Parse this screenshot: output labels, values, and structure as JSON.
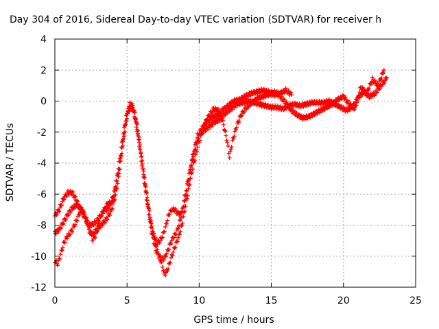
{
  "chart_data": {
    "type": "scatter",
    "title": "Day 304 of 2016, Sidereal Day-to-day VTEC variation (SDTVAR) for receiver h",
    "xlabel": "GPS time / hours",
    "ylabel": "SDTVAR / TECUs",
    "xlim": [
      0,
      25
    ],
    "ylim": [
      -12,
      4
    ],
    "xticks": [
      "0",
      "5",
      "10",
      "15",
      "20",
      "25"
    ],
    "yticks": [
      "-12",
      "-10",
      "-8",
      "-6",
      "-4",
      "-2",
      "0",
      "2",
      "4"
    ],
    "grid": true,
    "marker": "plus",
    "color": "#ff0000",
    "series": [
      {
        "values": [
          [
            0.0,
            -7.4
          ],
          [
            0.3,
            -7.0
          ],
          [
            0.6,
            -6.3
          ],
          [
            0.9,
            -5.9
          ],
          [
            1.2,
            -5.9
          ],
          [
            1.5,
            -6.4
          ],
          [
            1.8,
            -7.0
          ],
          [
            2.1,
            -7.6
          ],
          [
            2.4,
            -8.0
          ],
          [
            2.7,
            -7.9
          ],
          [
            3.0,
            -7.6
          ],
          [
            3.3,
            -7.2
          ],
          [
            3.6,
            -6.7
          ],
          [
            3.9,
            -6.5
          ],
          [
            4.1,
            -5.9
          ],
          [
            4.3,
            -4.9
          ],
          [
            4.5,
            -3.7
          ],
          [
            4.7,
            -2.4
          ],
          [
            4.9,
            -1.2
          ],
          [
            5.1,
            -0.5
          ],
          [
            5.3,
            -0.3
          ],
          [
            5.5,
            -0.8
          ],
          [
            5.7,
            -1.8
          ],
          [
            5.9,
            -3.0
          ],
          [
            6.1,
            -4.3
          ],
          [
            6.3,
            -5.6
          ],
          [
            6.5,
            -7.0
          ],
          [
            6.7,
            -8.1
          ],
          [
            6.9,
            -8.8
          ],
          [
            7.1,
            -9.1
          ],
          [
            7.3,
            -9.0
          ],
          [
            7.5,
            -8.6
          ],
          [
            7.7,
            -8.0
          ],
          [
            7.9,
            -7.3
          ],
          [
            8.1,
            -7.0
          ],
          [
            8.3,
            -7.0
          ],
          [
            8.5,
            -7.2
          ],
          [
            8.7,
            -7.3
          ],
          [
            8.9,
            -6.9
          ],
          [
            9.1,
            -6.0
          ],
          [
            9.3,
            -4.9
          ],
          [
            9.5,
            -3.8
          ],
          [
            9.7,
            -2.9
          ],
          [
            9.9,
            -2.2
          ],
          [
            10.1,
            -1.9
          ],
          [
            10.4,
            -1.5
          ],
          [
            10.7,
            -1.2
          ],
          [
            11.0,
            -1.0
          ],
          [
            11.3,
            -0.9
          ],
          [
            11.6,
            -0.6
          ],
          [
            12.0,
            -0.3
          ],
          [
            12.4,
            0.0
          ],
          [
            12.8,
            0.1
          ],
          [
            13.2,
            0.3
          ],
          [
            13.6,
            0.5
          ],
          [
            14.0,
            0.6
          ],
          [
            14.4,
            0.7
          ],
          [
            14.8,
            0.6
          ],
          [
            15.2,
            0.4
          ],
          [
            15.6,
            0.5
          ],
          [
            16.0,
            0.7
          ],
          [
            16.4,
            0.4
          ]
        ]
      },
      {
        "values": [
          [
            0.0,
            -8.5
          ],
          [
            0.3,
            -8.3
          ],
          [
            0.6,
            -7.8
          ],
          [
            0.9,
            -7.3
          ],
          [
            1.2,
            -6.9
          ],
          [
            1.5,
            -6.7
          ],
          [
            1.8,
            -6.9
          ],
          [
            2.1,
            -7.4
          ],
          [
            2.4,
            -8.2
          ],
          [
            2.6,
            -8.9
          ],
          [
            2.8,
            -8.7
          ],
          [
            3.0,
            -8.2
          ],
          [
            3.3,
            -7.9
          ],
          [
            3.6,
            -7.6
          ],
          [
            3.9,
            -7.1
          ],
          [
            4.2,
            -6.1
          ],
          [
            4.4,
            -5.0
          ],
          [
            4.6,
            -3.6
          ],
          [
            4.8,
            -2.2
          ],
          [
            5.0,
            -1.0
          ],
          [
            5.2,
            -0.4
          ],
          [
            5.4,
            -0.5
          ],
          [
            5.6,
            -1.3
          ],
          [
            5.8,
            -2.5
          ],
          [
            6.0,
            -3.8
          ],
          [
            6.2,
            -5.2
          ],
          [
            6.4,
            -6.6
          ],
          [
            6.6,
            -7.9
          ],
          [
            6.8,
            -8.9
          ],
          [
            7.0,
            -9.6
          ],
          [
            7.2,
            -10.0
          ],
          [
            7.4,
            -10.2
          ],
          [
            7.6,
            -10.1
          ],
          [
            7.8,
            -9.7
          ],
          [
            8.0,
            -9.2
          ],
          [
            8.2,
            -8.8
          ],
          [
            8.4,
            -8.5
          ],
          [
            8.6,
            -8.0
          ],
          [
            8.8,
            -7.2
          ],
          [
            9.0,
            -6.2
          ],
          [
            9.2,
            -5.2
          ],
          [
            9.4,
            -4.3
          ],
          [
            9.6,
            -3.5
          ],
          [
            9.8,
            -2.8
          ],
          [
            10.0,
            -2.2
          ],
          [
            10.3,
            -1.9
          ],
          [
            10.6,
            -1.7
          ],
          [
            11.0,
            -1.4
          ],
          [
            11.4,
            -1.2
          ],
          [
            11.8,
            -0.8
          ],
          [
            12.2,
            -0.5
          ],
          [
            12.6,
            -0.2
          ],
          [
            13.0,
            -0.1
          ],
          [
            13.4,
            0.0
          ],
          [
            13.8,
            -0.1
          ],
          [
            14.2,
            -0.2
          ],
          [
            14.6,
            -0.3
          ],
          [
            15.0,
            -0.4
          ],
          [
            15.4,
            -0.4
          ],
          [
            15.8,
            -0.5
          ],
          [
            16.2,
            -0.3
          ],
          [
            16.6,
            -0.2
          ],
          [
            17.0,
            -0.3
          ],
          [
            17.4,
            -0.2
          ],
          [
            17.8,
            -0.1
          ],
          [
            18.2,
            -0.1
          ],
          [
            18.6,
            -0.1
          ],
          [
            19.0,
            0.0
          ],
          [
            19.4,
            -0.2
          ],
          [
            19.8,
            -0.4
          ],
          [
            20.2,
            -0.6
          ],
          [
            20.6,
            -0.4
          ],
          [
            21.0,
            0.2
          ],
          [
            21.4,
            0.6
          ],
          [
            21.8,
            0.3
          ],
          [
            22.2,
            0.5
          ],
          [
            22.6,
            1.0
          ],
          [
            23.0,
            1.5
          ]
        ]
      },
      {
        "values": [
          [
            0.0,
            -10.3
          ],
          [
            0.2,
            -10.5
          ],
          [
            0.4,
            -9.9
          ],
          [
            0.6,
            -9.2
          ],
          [
            0.8,
            -8.8
          ],
          [
            1.0,
            -8.6
          ],
          [
            1.2,
            -8.3
          ],
          [
            1.4,
            -7.9
          ],
          [
            1.6,
            -7.5
          ],
          [
            1.8,
            -7.0
          ],
          [
            2.0,
            -7.2
          ],
          [
            2.2,
            -7.8
          ],
          [
            2.4,
            -8.4
          ],
          [
            2.6,
            -8.6
          ],
          [
            2.8,
            -8.4
          ],
          [
            3.0,
            -8.0
          ],
          [
            3.2,
            -7.4
          ],
          [
            3.4,
            -7.0
          ],
          [
            3.6,
            -7.0
          ],
          [
            3.8,
            -6.8
          ],
          [
            4.0,
            -6.3
          ],
          [
            4.2,
            -5.7
          ],
          [
            4.4,
            -4.6
          ],
          [
            4.6,
            -3.4
          ],
          [
            4.8,
            -2.0
          ],
          [
            5.0,
            -0.9
          ],
          [
            5.2,
            -0.2
          ],
          [
            5.4,
            -0.3
          ],
          [
            5.6,
            -1.0
          ],
          [
            5.8,
            -2.2
          ],
          [
            6.0,
            -3.6
          ],
          [
            6.2,
            -5.0
          ],
          [
            6.4,
            -6.3
          ],
          [
            6.6,
            -7.5
          ],
          [
            6.8,
            -8.5
          ],
          [
            7.0,
            -9.3
          ],
          [
            7.2,
            -9.9
          ],
          [
            7.4,
            -10.5
          ],
          [
            7.6,
            -11.2
          ],
          [
            7.8,
            -10.9
          ],
          [
            8.0,
            -10.3
          ],
          [
            8.2,
            -9.7
          ],
          [
            8.4,
            -9.2
          ],
          [
            8.6,
            -8.7
          ],
          [
            8.8,
            -8.0
          ],
          [
            9.0,
            -7.0
          ],
          [
            9.2,
            -6.0
          ],
          [
            9.4,
            -5.0
          ],
          [
            9.6,
            -4.1
          ],
          [
            9.8,
            -3.3
          ],
          [
            10.0,
            -2.6
          ],
          [
            10.2,
            -2.0
          ],
          [
            10.4,
            -1.4
          ],
          [
            10.7,
            -0.9
          ],
          [
            11.0,
            -0.5
          ],
          [
            11.3,
            -0.6
          ],
          [
            11.6,
            -1.2
          ],
          [
            11.9,
            -2.4
          ],
          [
            12.1,
            -3.6
          ],
          [
            12.3,
            -2.6
          ],
          [
            12.6,
            -1.6
          ],
          [
            12.9,
            -0.9
          ],
          [
            13.2,
            -0.5
          ],
          [
            13.5,
            -0.2
          ],
          [
            13.8,
            0.0
          ],
          [
            14.1,
            0.2
          ],
          [
            14.4,
            0.3
          ],
          [
            14.7,
            0.4
          ],
          [
            15.0,
            0.5
          ],
          [
            15.3,
            0.6
          ],
          [
            15.6,
            0.3
          ],
          [
            16.0,
            -0.1
          ],
          [
            16.4,
            -0.6
          ],
          [
            16.8,
            -0.9
          ],
          [
            17.2,
            -1.1
          ],
          [
            17.6,
            -1.0
          ],
          [
            18.0,
            -0.8
          ],
          [
            18.4,
            -0.6
          ],
          [
            18.8,
            -0.4
          ],
          [
            19.2,
            -0.2
          ],
          [
            19.6,
            0.1
          ],
          [
            20.0,
            0.3
          ],
          [
            20.4,
            -0.2
          ],
          [
            20.8,
            -0.5
          ],
          [
            21.2,
            0.9
          ],
          [
            21.6,
            0.5
          ],
          [
            22.0,
            1.4
          ],
          [
            22.4,
            1.0
          ],
          [
            22.8,
            2.0
          ]
        ]
      }
    ]
  }
}
